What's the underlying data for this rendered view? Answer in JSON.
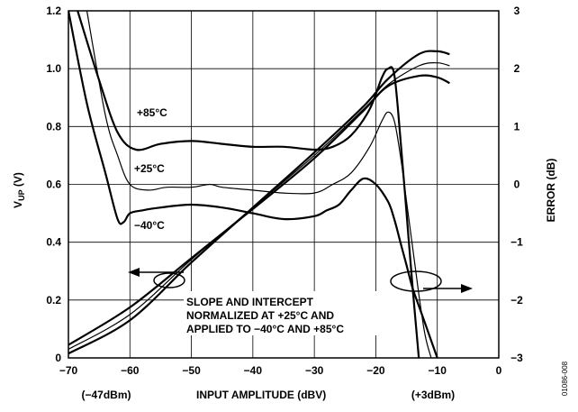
{
  "chart_data": {
    "type": "line",
    "xlabel": "INPUT AMPLITUDE (dBV)",
    "ylabel_left": "V",
    "ylabel_left_sub": "UP",
    "ylabel_left_unit": " (V)",
    "ylabel_right": "ERROR (dB)",
    "xlim": [
      -70,
      0
    ],
    "ylim_left": [
      0,
      1.2
    ],
    "ylim_right": [
      -3,
      3
    ],
    "grid": true,
    "x_ticks": [
      "−70",
      "−60",
      "−50",
      "−40",
      "−30",
      "−20",
      "−10",
      "0"
    ],
    "y_left_ticks": [
      "0",
      "0.2",
      "0.4",
      "0.6",
      "0.8",
      "1.0",
      "1.2"
    ],
    "y_right_ticks": [
      "−3",
      "−2",
      "−1",
      "0",
      "1",
      "2",
      "3"
    ],
    "x_sublabel_left": "(−47dBm)",
    "x_sublabel_right": "(+3dBm)",
    "figure_id": "01086-008",
    "annotations": {
      "label_85": "+85°C",
      "label_25": "+25°C",
      "label_m40": "−40°C",
      "note_line1": "SLOPE AND INTERCEPT",
      "note_line2": "NORMALIZED AT +25°C AND",
      "note_line3": "APPLIED TO −40°C AND +85°C"
    },
    "vup_series": [
      {
        "name": "+85°C",
        "axis": "left",
        "x": [
          -70,
          -60,
          -50,
          -40,
          -30,
          -22,
          -18,
          -13,
          -10,
          -8
        ],
        "y": [
          0.045,
          0.175,
          0.345,
          0.515,
          0.69,
          0.855,
          0.94,
          0.975,
          0.97,
          0.95
        ]
      },
      {
        "name": "+25°C",
        "axis": "left",
        "x": [
          -70,
          -60,
          -50,
          -40,
          -30,
          -22,
          -18,
          -13,
          -10,
          -8
        ],
        "y": [
          0.03,
          0.15,
          0.34,
          0.52,
          0.7,
          0.86,
          0.945,
          1.01,
          1.02,
          1.01
        ]
      },
      {
        "name": "−40°C",
        "axis": "left",
        "x": [
          -70,
          -60,
          -50,
          -40,
          -30,
          -22,
          -18,
          -13,
          -10,
          -8
        ],
        "y": [
          0.015,
          0.13,
          0.33,
          0.52,
          0.71,
          0.87,
          0.965,
          1.05,
          1.06,
          1.05
        ]
      }
    ],
    "error_series": [
      {
        "name": "+85°C",
        "axis": "right",
        "x": [
          -68.5,
          -65,
          -62,
          -59,
          -55,
          -50,
          -45,
          -40,
          -35,
          -30,
          -27,
          -24,
          -21,
          -19,
          -18,
          -17,
          -16,
          -15,
          -14,
          -13
        ],
        "y": [
          3,
          1.8,
          0.9,
          0.6,
          0.7,
          0.75,
          0.7,
          0.65,
          0.65,
          0.6,
          0.65,
          0.85,
          1.3,
          1.85,
          2.0,
          1.9,
          0.8,
          -0.5,
          -1.8,
          -3
        ]
      },
      {
        "name": "+25°C",
        "axis": "right",
        "x": [
          -67,
          -64,
          -62,
          -60,
          -57,
          -54,
          -50,
          -47,
          -45,
          -40,
          -35,
          -30,
          -27,
          -24,
          -21,
          -19,
          -18,
          -17,
          -16,
          -15,
          -14,
          -13,
          -12,
          -11
        ],
        "y": [
          3,
          1.2,
          0.5,
          0.0,
          -0.1,
          -0.05,
          -0.05,
          0.0,
          -0.05,
          -0.1,
          -0.15,
          -0.15,
          0.0,
          0.2,
          0.65,
          1.1,
          1.25,
          1.1,
          0.5,
          -0.3,
          -1.1,
          -1.9,
          -2.6,
          -3
        ]
      },
      {
        "name": "−40°C",
        "axis": "right",
        "x": [
          -70,
          -67,
          -64,
          -62,
          -61,
          -60,
          -58,
          -55,
          -50,
          -45,
          -40,
          -35,
          -30,
          -28,
          -26,
          -24,
          -22,
          -20,
          -18,
          -17,
          -16,
          -15,
          -14,
          -13,
          -12,
          -11,
          -10
        ],
        "y": [
          3,
          1.4,
          0.2,
          -0.6,
          -0.65,
          -0.5,
          -0.45,
          -0.4,
          -0.35,
          -0.4,
          -0.5,
          -0.6,
          -0.55,
          -0.45,
          -0.35,
          -0.1,
          0.1,
          0.0,
          -0.3,
          -0.6,
          -1.0,
          -1.4,
          -1.8,
          -2.1,
          -2.4,
          -2.7,
          -3
        ]
      }
    ]
  }
}
